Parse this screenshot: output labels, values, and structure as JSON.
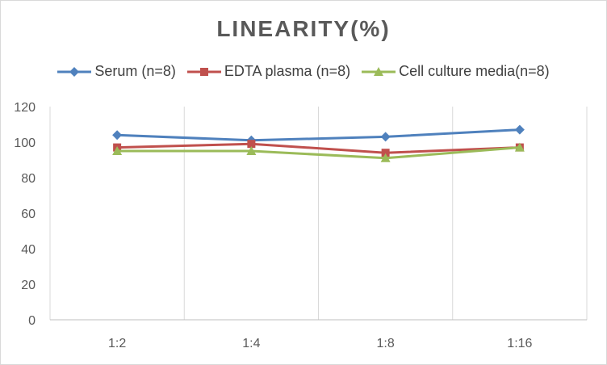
{
  "chart_data": {
    "type": "line",
    "title": "LINEARITY(%)",
    "categories": [
      "1:2",
      "1:4",
      "1:8",
      "1:16"
    ],
    "series": [
      {
        "name": "Serum (n=8)",
        "values": [
          104,
          101,
          103,
          107
        ],
        "color": "#4f81bd",
        "marker": "diamond"
      },
      {
        "name": "EDTA plasma (n=8)",
        "values": [
          97,
          99,
          94,
          97
        ],
        "color": "#c0504d",
        "marker": "square"
      },
      {
        "name": "Cell culture media(n=8)",
        "values": [
          95,
          95,
          91,
          97
        ],
        "color": "#9bbb59",
        "marker": "triangle"
      }
    ],
    "ylim": [
      0,
      120
    ],
    "yticks": [
      0,
      20,
      40,
      60,
      80,
      100,
      120
    ],
    "grid": "vertical",
    "legend_position": "top"
  }
}
